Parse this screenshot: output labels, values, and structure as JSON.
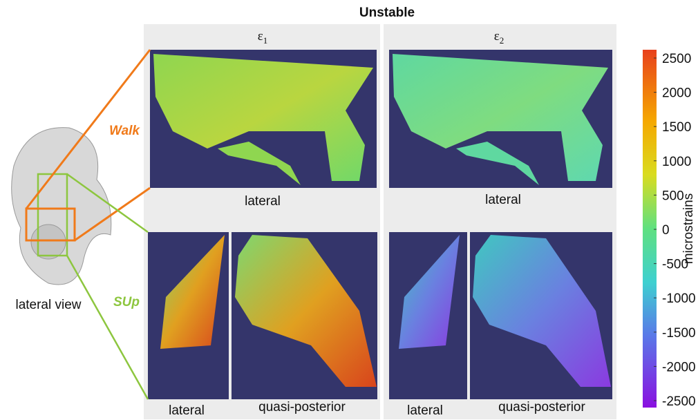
{
  "title": "Unstable",
  "columns": [
    {
      "symbol": "ε",
      "subscript": "1",
      "top_label": "lateral",
      "bottom_labels": [
        "lateral",
        "quasi-posterior"
      ]
    },
    {
      "symbol": "ε",
      "subscript": "2",
      "top_label": "lateral",
      "bottom_labels": [
        "lateral",
        "quasi-posterior"
      ]
    }
  ],
  "rows": {
    "walk": "Walk",
    "sup": "SUp"
  },
  "anatomy_label": "lateral view",
  "colorbar": {
    "label": "microstrains",
    "ticks": [
      2500,
      2000,
      1500,
      1000,
      500,
      0,
      -500,
      -1000,
      -1500,
      -2000,
      -2500
    ]
  }
}
